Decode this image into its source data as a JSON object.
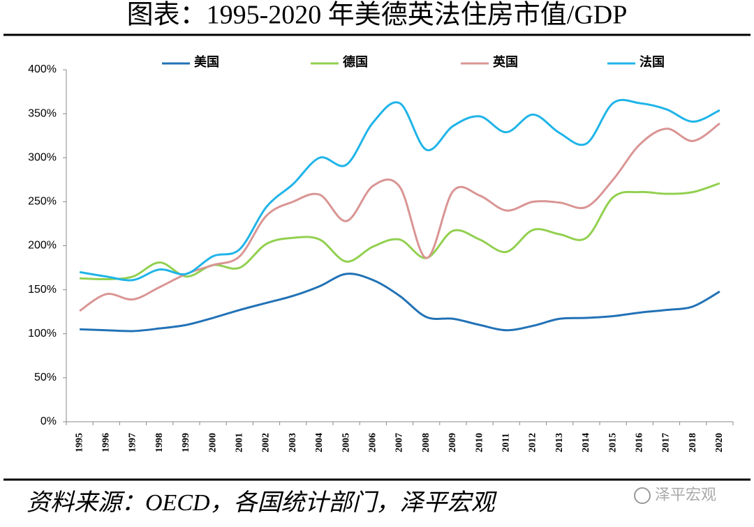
{
  "chart_data": {
    "type": "line",
    "title": "图表：1995-2020 年美德英法住房市值/GDP",
    "source": "资料来源：OECD，各国统计部门，泽平宏观",
    "watermark": "泽平宏观",
    "categories": [
      "1995",
      "1996",
      "1997",
      "1998",
      "1999",
      "2000",
      "2001",
      "2002",
      "2003",
      "2004",
      "2005",
      "2006",
      "2007",
      "2008",
      "2009",
      "2010",
      "2011",
      "2012",
      "2013",
      "2014",
      "2015",
      "2016",
      "2017",
      "2018",
      "2020"
    ],
    "series": [
      {
        "name": "美国",
        "color": "#2272b6",
        "values": [
          105,
          104,
          103,
          106,
          110,
          118,
          127,
          135,
          143,
          154,
          168,
          161,
          143,
          119,
          117,
          110,
          104,
          109,
          117,
          118,
          120,
          124,
          127,
          131,
          148
        ]
      },
      {
        "name": "德国",
        "color": "#92d050",
        "values": [
          163,
          162,
          165,
          181,
          165,
          178,
          175,
          202,
          209,
          207,
          182,
          199,
          207,
          186,
          217,
          207,
          193,
          218,
          213,
          209,
          255,
          261,
          259,
          261,
          271
        ]
      },
      {
        "name": "英国",
        "color": "#d99594",
        "values": [
          126,
          145,
          139,
          153,
          168,
          178,
          188,
          234,
          250,
          258,
          228,
          268,
          267,
          186,
          262,
          257,
          240,
          250,
          249,
          244,
          275,
          315,
          333,
          319,
          339
        ]
      },
      {
        "name": "法国",
        "color": "#1fb4e8",
        "values": [
          170,
          165,
          161,
          173,
          168,
          188,
          196,
          244,
          270,
          300,
          292,
          340,
          362,
          309,
          336,
          347,
          329,
          349,
          328,
          316,
          362,
          362,
          355,
          341,
          354
        ]
      }
    ],
    "ylim": [
      0,
      400
    ],
    "yticks": [
      {
        "value": 0,
        "label": "0%"
      },
      {
        "value": 50,
        "label": "50%"
      },
      {
        "value": 100,
        "label": "100%"
      },
      {
        "value": 150,
        "label": "150%"
      },
      {
        "value": 200,
        "label": "200%"
      },
      {
        "value": 250,
        "label": "250%"
      },
      {
        "value": 300,
        "label": "300%"
      },
      {
        "value": 350,
        "label": "350%"
      },
      {
        "value": 400,
        "label": "400%"
      }
    ],
    "legend": "top"
  }
}
